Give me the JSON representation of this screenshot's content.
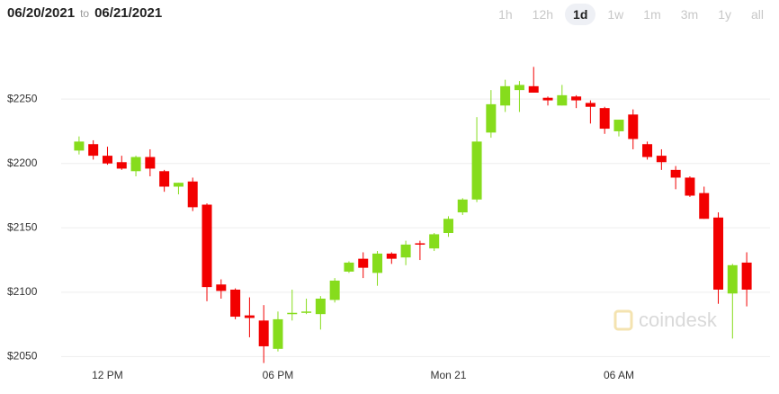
{
  "header": {
    "from": "06/20/2021",
    "to_word": "to",
    "to": "06/21/2021"
  },
  "ranges": [
    "1h",
    "12h",
    "1d",
    "1w",
    "1m",
    "3m",
    "1y",
    "all"
  ],
  "selected_range": "1d",
  "watermark": "coindesk",
  "chart_data": {
    "type": "candlestick",
    "up_color": "#86dc1c",
    "down_color": "#f20000",
    "grid": true,
    "categories": [
      null,
      null,
      "12 PM",
      null,
      null,
      null,
      null,
      null,
      null,
      null,
      null,
      null,
      null,
      null,
      "06 PM",
      null,
      null,
      null,
      null,
      null,
      null,
      null,
      null,
      null,
      null,
      null,
      "Mon 21",
      null,
      null,
      null,
      null,
      null,
      null,
      null,
      null,
      null,
      null,
      null,
      "06 AM",
      null,
      null,
      null,
      null,
      null,
      null,
      null,
      null,
      null
    ],
    "open": [
      2210,
      2215,
      2206,
      2201,
      2194,
      2205,
      2194,
      2182,
      2186,
      2168,
      2106,
      2102,
      2082,
      2078,
      2056,
      2083,
      2084,
      2083,
      2094,
      2116,
      2126,
      2115,
      2130,
      2127,
      2138,
      2134,
      2146,
      2162,
      2172,
      2224,
      2245,
      2257,
      2260,
      2251,
      2245,
      2252,
      2247,
      2243,
      2225,
      2238,
      2215,
      2206,
      2195,
      2189,
      2177,
      2158,
      2099,
      2123
    ],
    "high": [
      2221,
      2218,
      2213,
      2206,
      2206,
      2211,
      2195,
      2185,
      2189,
      2169,
      2110,
      2103,
      2096,
      2090,
      2085,
      2102,
      2095,
      2097,
      2111,
      2124,
      2131,
      2132,
      2131,
      2140,
      2140,
      2146,
      2159,
      2173,
      2236,
      2257,
      2265,
      2264,
      2275,
      2252,
      2261,
      2253,
      2249,
      2244,
      2234,
      2242,
      2217,
      2211,
      2198,
      2190,
      2182,
      2162,
      2122,
      2131
    ],
    "low": [
      2207,
      2203,
      2199,
      2195,
      2190,
      2190,
      2178,
      2176,
      2163,
      2093,
      2095,
      2079,
      2065,
      2045,
      2054,
      2078,
      2083,
      2071,
      2092,
      2115,
      2111,
      2105,
      2122,
      2121,
      2125,
      2132,
      2143,
      2160,
      2170,
      2220,
      2240,
      2240,
      2255,
      2245,
      2245,
      2243,
      2231,
      2223,
      2221,
      2211,
      2203,
      2195,
      2180,
      2174,
      2157,
      2091,
      2064,
      2089
    ],
    "close": [
      2217,
      2206,
      2200,
      2196,
      2205,
      2196,
      2182,
      2185,
      2166,
      2104,
      2101,
      2081,
      2080,
      2058,
      2079,
      2084,
      2085,
      2095,
      2109,
      2123,
      2119,
      2130,
      2126,
      2137,
      2137,
      2145,
      2157,
      2172,
      2217,
      2246,
      2260,
      2261,
      2255,
      2249,
      2253,
      2249,
      2244,
      2227,
      2234,
      2219,
      2205,
      2201,
      2189,
      2175,
      2157,
      2102,
      2121,
      2102
    ],
    "ylim": [
      2044,
      2299
    ],
    "yticks": [
      {
        "value": 2050,
        "label": "$2050"
      },
      {
        "value": 2100,
        "label": "$2100"
      },
      {
        "value": 2150,
        "label": "$2150"
      },
      {
        "value": 2200,
        "label": "$2200"
      },
      {
        "value": 2250,
        "label": "$2250"
      }
    ]
  }
}
